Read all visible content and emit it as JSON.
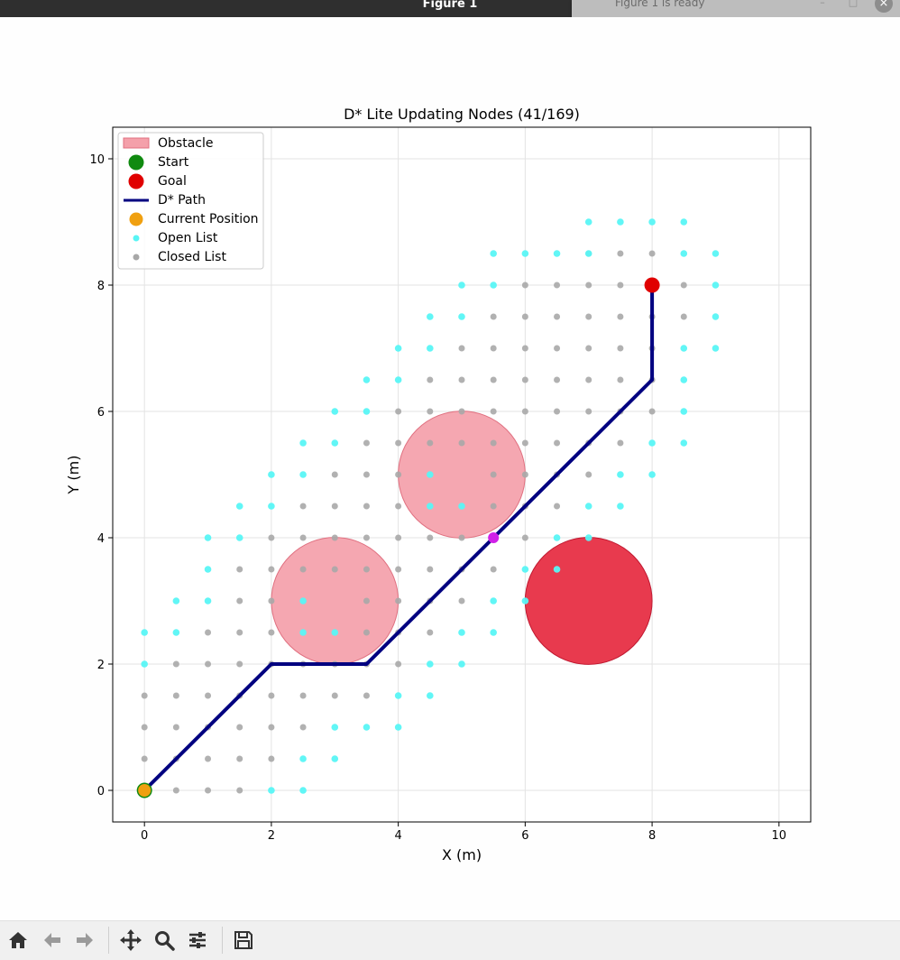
{
  "window": {
    "title": "Figure 1",
    "notification": "Figure 1 is ready"
  },
  "toolbar": {
    "buttons": [
      {
        "name": "home-icon"
      },
      {
        "name": "back-arrow-icon"
      },
      {
        "name": "forward-arrow-icon"
      },
      {
        "name": "pan-icon"
      },
      {
        "name": "zoom-icon"
      },
      {
        "name": "configure-subplots-icon"
      },
      {
        "name": "save-icon"
      }
    ]
  },
  "chart_data": {
    "type": "scatter",
    "title": "D* Lite Updating Nodes (41/169)",
    "xlabel": "X (m)",
    "ylabel": "Y (m)",
    "xlim": [
      -0.5,
      10.5
    ],
    "ylim": [
      -0.5,
      10.5
    ],
    "xticks": [
      0,
      2,
      4,
      6,
      8,
      10
    ],
    "yticks": [
      0,
      2,
      4,
      6,
      8,
      10
    ],
    "grid": true,
    "legend_position": "top-left",
    "legend": [
      "Obstacle",
      "Start",
      "Goal",
      "D* Path",
      "Current Position",
      "Open List",
      "Closed List"
    ],
    "colors": {
      "obstacle": "#f4a0aa",
      "obstacle_active": "#e8364a",
      "start": "#108a10",
      "goal": "#e00000",
      "path": "#000080",
      "current": "#f0a010",
      "open": "#58f5f5",
      "closed": "#a8a8a8",
      "updating": "#d020e8"
    },
    "obstacles": [
      {
        "cx": 3,
        "cy": 3,
        "r": 1,
        "state": "known"
      },
      {
        "cx": 5,
        "cy": 5,
        "r": 1,
        "state": "known"
      },
      {
        "cx": 7,
        "cy": 3,
        "r": 1,
        "state": "new"
      }
    ],
    "start": [
      0,
      0
    ],
    "goal": [
      8,
      8
    ],
    "current_position": [
      0,
      0
    ],
    "updating_node": [
      5.5,
      4
    ],
    "path": [
      [
        0,
        0
      ],
      [
        2,
        2
      ],
      [
        3.5,
        2
      ],
      [
        5.5,
        4
      ],
      [
        8,
        6.5
      ],
      [
        8,
        8
      ]
    ],
    "open_list": [
      [
        2,
        0
      ],
      [
        2.5,
        0
      ],
      [
        2.5,
        0.5
      ],
      [
        3,
        0.5
      ],
      [
        3,
        1
      ],
      [
        3.5,
        1
      ],
      [
        4,
        1
      ],
      [
        4,
        1.5
      ],
      [
        4.5,
        1.5
      ],
      [
        4.5,
        2
      ],
      [
        5,
        2
      ],
      [
        0,
        2
      ],
      [
        0,
        2.5
      ],
      [
        0.5,
        2.5
      ],
      [
        0.5,
        3
      ],
      [
        1,
        3
      ],
      [
        1,
        3.5
      ],
      [
        1,
        4
      ],
      [
        1.5,
        4
      ],
      [
        1.5,
        4.5
      ],
      [
        2,
        4.5
      ],
      [
        2,
        5
      ],
      [
        2.5,
        5
      ],
      [
        2.5,
        5.5
      ],
      [
        3,
        5.5
      ],
      [
        3,
        6
      ],
      [
        3.5,
        6
      ],
      [
        3.5,
        6.5
      ],
      [
        4,
        6.5
      ],
      [
        4,
        7
      ],
      [
        4.5,
        7
      ],
      [
        4.5,
        7.5
      ],
      [
        5,
        7.5
      ],
      [
        5,
        8
      ],
      [
        5.5,
        8
      ],
      [
        5.5,
        8.5
      ],
      [
        6,
        8.5
      ],
      [
        6.5,
        8.5
      ],
      [
        7,
        8.5
      ],
      [
        7,
        9
      ],
      [
        7.5,
        9
      ],
      [
        8,
        9
      ],
      [
        8.5,
        9
      ],
      [
        8.5,
        8.5
      ],
      [
        9,
        8.5
      ],
      [
        9,
        8
      ],
      [
        9,
        7.5
      ],
      [
        9,
        7
      ],
      [
        8.5,
        7
      ],
      [
        8.5,
        6.5
      ],
      [
        8.5,
        6
      ],
      [
        8.5,
        5.5
      ],
      [
        8,
        5.5
      ],
      [
        8,
        5
      ],
      [
        7.5,
        5
      ],
      [
        7.5,
        4.5
      ],
      [
        7,
        4.5
      ],
      [
        7,
        4
      ],
      [
        6.5,
        4
      ],
      [
        6.5,
        3.5
      ],
      [
        6,
        3.5
      ],
      [
        6,
        3
      ],
      [
        5.5,
        3
      ],
      [
        5.5,
        2.5
      ],
      [
        5,
        2.5
      ],
      [
        2.5,
        3
      ],
      [
        2.5,
        2.5
      ],
      [
        3,
        2.5
      ],
      [
        4.5,
        5
      ],
      [
        4.5,
        4.5
      ],
      [
        5,
        4.5
      ]
    ],
    "closed_list": [
      [
        0.5,
        0
      ],
      [
        1,
        0
      ],
      [
        1.5,
        0
      ],
      [
        0,
        0.5
      ],
      [
        0.5,
        0.5
      ],
      [
        1,
        0.5
      ],
      [
        1.5,
        0.5
      ],
      [
        2,
        0.5
      ],
      [
        0,
        1
      ],
      [
        0.5,
        1
      ],
      [
        1,
        1
      ],
      [
        1.5,
        1
      ],
      [
        2,
        1
      ],
      [
        2.5,
        1
      ],
      [
        0,
        1.5
      ],
      [
        0.5,
        1.5
      ],
      [
        1,
        1.5
      ],
      [
        1.5,
        1.5
      ],
      [
        2,
        1.5
      ],
      [
        2.5,
        1.5
      ],
      [
        3,
        1.5
      ],
      [
        3.5,
        1.5
      ],
      [
        0.5,
        2
      ],
      [
        1,
        2
      ],
      [
        1.5,
        2
      ],
      [
        2,
        2
      ],
      [
        2.5,
        2
      ],
      [
        3,
        2
      ],
      [
        3.5,
        2
      ],
      [
        4,
        2
      ],
      [
        1,
        2.5
      ],
      [
        1.5,
        2.5
      ],
      [
        2,
        2.5
      ],
      [
        3.5,
        2.5
      ],
      [
        4,
        2.5
      ],
      [
        4.5,
        2.5
      ],
      [
        1.5,
        3
      ],
      [
        2,
        3
      ],
      [
        3.5,
        3
      ],
      [
        4,
        3
      ],
      [
        4.5,
        3
      ],
      [
        5,
        3
      ],
      [
        1.5,
        3.5
      ],
      [
        2,
        3.5
      ],
      [
        2.5,
        3.5
      ],
      [
        3,
        3.5
      ],
      [
        3.5,
        3.5
      ],
      [
        4,
        3.5
      ],
      [
        4.5,
        3.5
      ],
      [
        5,
        3.5
      ],
      [
        5.5,
        3.5
      ],
      [
        2,
        4
      ],
      [
        2.5,
        4
      ],
      [
        3,
        4
      ],
      [
        3.5,
        4
      ],
      [
        4,
        4
      ],
      [
        4.5,
        4
      ],
      [
        5,
        4
      ],
      [
        6,
        4
      ],
      [
        2.5,
        4.5
      ],
      [
        3,
        4.5
      ],
      [
        3.5,
        4.5
      ],
      [
        4,
        4.5
      ],
      [
        5.5,
        4.5
      ],
      [
        6,
        4.5
      ],
      [
        6.5,
        4.5
      ],
      [
        3,
        5
      ],
      [
        3.5,
        5
      ],
      [
        4,
        5
      ],
      [
        5.5,
        5
      ],
      [
        6,
        5
      ],
      [
        6.5,
        5
      ],
      [
        7,
        5
      ],
      [
        3.5,
        5.5
      ],
      [
        4,
        5.5
      ],
      [
        4.5,
        5.5
      ],
      [
        5,
        5.5
      ],
      [
        5.5,
        5.5
      ],
      [
        6,
        5.5
      ],
      [
        6.5,
        5.5
      ],
      [
        7,
        5.5
      ],
      [
        7.5,
        5.5
      ],
      [
        4,
        6
      ],
      [
        4.5,
        6
      ],
      [
        5,
        6
      ],
      [
        5.5,
        6
      ],
      [
        6,
        6
      ],
      [
        6.5,
        6
      ],
      [
        7,
        6
      ],
      [
        7.5,
        6
      ],
      [
        8,
        6
      ],
      [
        4.5,
        6.5
      ],
      [
        5,
        6.5
      ],
      [
        5.5,
        6.5
      ],
      [
        6,
        6.5
      ],
      [
        6.5,
        6.5
      ],
      [
        7,
        6.5
      ],
      [
        7.5,
        6.5
      ],
      [
        8,
        6.5
      ],
      [
        5,
        7
      ],
      [
        5.5,
        7
      ],
      [
        6,
        7
      ],
      [
        6.5,
        7
      ],
      [
        7,
        7
      ],
      [
        7.5,
        7
      ],
      [
        8,
        7
      ],
      [
        5.5,
        7.5
      ],
      [
        6,
        7.5
      ],
      [
        6.5,
        7.5
      ],
      [
        7,
        7.5
      ],
      [
        7.5,
        7.5
      ],
      [
        8,
        7.5
      ],
      [
        8.5,
        7.5
      ],
      [
        6,
        8
      ],
      [
        6.5,
        8
      ],
      [
        7,
        8
      ],
      [
        7.5,
        8
      ],
      [
        8,
        8
      ],
      [
        8.5,
        8
      ],
      [
        7,
        8.5
      ],
      [
        7.5,
        8.5
      ],
      [
        8,
        8.5
      ]
    ]
  }
}
